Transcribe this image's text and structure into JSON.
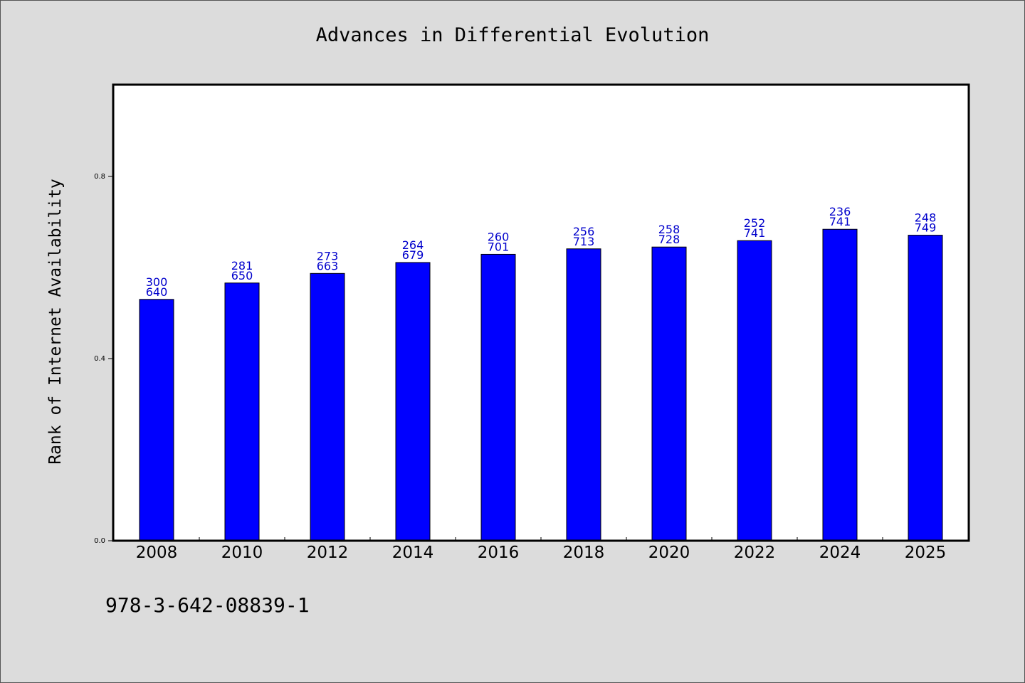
{
  "chart_data": {
    "type": "bar",
    "title": "Advances in Differential Evolution",
    "xlabel": "",
    "ylabel": "Rank of Internet Availability",
    "ylim": [
      0,
      1.0
    ],
    "yticks": [
      0.0,
      0.4,
      0.8
    ],
    "ytick_labels": [
      "0.0",
      "0.4",
      "0.8"
    ],
    "categories": [
      "2008",
      "2010",
      "2012",
      "2014",
      "2016",
      "2018",
      "2020",
      "2022",
      "2024",
      "2025"
    ],
    "values": [
      0.53,
      0.566,
      0.587,
      0.611,
      0.629,
      0.641,
      0.645,
      0.659,
      0.684,
      0.671
    ],
    "labels_top": [
      "300",
      "281",
      "273",
      "264",
      "260",
      "256",
      "258",
      "252",
      "236",
      "248"
    ],
    "labels_bottom": [
      "640",
      "650",
      "663",
      "679",
      "701",
      "713",
      "728",
      "741",
      "741",
      "749"
    ],
    "bar_color": "#0000ff",
    "label_color": "#0000cc",
    "grid": false,
    "legend": "none"
  },
  "footer_text": "978-3-642-08839-1"
}
